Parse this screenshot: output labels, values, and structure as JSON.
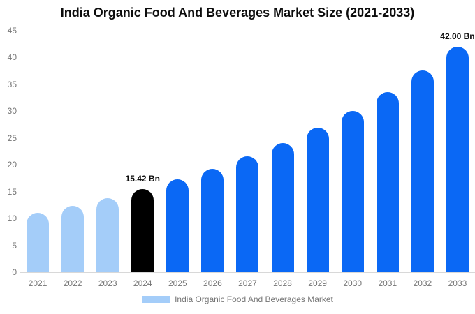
{
  "title": "India Organic Food And Beverages Market Size (2021-2033)",
  "colors": {
    "historical_bar": "#a4cdf9",
    "highlight_bar": "#000000",
    "forecast_bar": "#0a68f5",
    "axis_line": "#d8d8d8",
    "tick_text": "#757575",
    "label_text": "#0d0d0d"
  },
  "chart_data": {
    "type": "bar",
    "title": "India Organic Food And Beverages Market Size (2021-2033)",
    "xlabel": "",
    "ylabel": "",
    "ylim": [
      0,
      45
    ],
    "y_ticks": [
      0,
      5,
      10,
      15,
      20,
      25,
      30,
      35,
      40,
      45
    ],
    "grid": false,
    "categories": [
      "2021",
      "2022",
      "2023",
      "2024",
      "2025",
      "2026",
      "2027",
      "2028",
      "2029",
      "2030",
      "2031",
      "2032",
      "2033"
    ],
    "values": [
      11.04,
      12.34,
      13.8,
      15.42,
      17.24,
      19.27,
      21.54,
      24.07,
      26.91,
      30.08,
      33.62,
      37.58,
      42.0
    ],
    "points": [
      {
        "year": "2021",
        "value": 11.04,
        "role": "historical"
      },
      {
        "year": "2022",
        "value": 12.34,
        "role": "historical"
      },
      {
        "year": "2023",
        "value": 13.8,
        "role": "historical"
      },
      {
        "year": "2024",
        "value": 15.42,
        "role": "highlight",
        "label": "15.42 Bn"
      },
      {
        "year": "2025",
        "value": 17.24,
        "role": "forecast"
      },
      {
        "year": "2026",
        "value": 19.27,
        "role": "forecast"
      },
      {
        "year": "2027",
        "value": 21.54,
        "role": "forecast"
      },
      {
        "year": "2028",
        "value": 24.07,
        "role": "forecast"
      },
      {
        "year": "2029",
        "value": 26.91,
        "role": "forecast"
      },
      {
        "year": "2030",
        "value": 30.08,
        "role": "forecast"
      },
      {
        "year": "2031",
        "value": 33.62,
        "role": "forecast"
      },
      {
        "year": "2032",
        "value": 37.58,
        "role": "forecast"
      },
      {
        "year": "2033",
        "value": 42.0,
        "role": "forecast",
        "label": "42.00 Bn"
      }
    ],
    "annotations": [
      {
        "year": "2024",
        "text": "15.42 Bn"
      },
      {
        "year": "2033",
        "text": "42.00 Bn"
      }
    ],
    "legend": {
      "position": "bottom",
      "label": "India Organic Food And Beverages Market"
    }
  }
}
